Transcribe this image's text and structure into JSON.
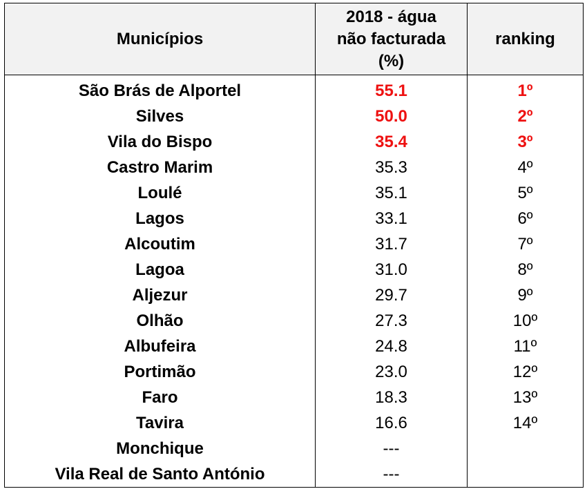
{
  "table": {
    "headers": {
      "municipality": "Municípios",
      "value_line1": "2018 - água",
      "value_line2": "não facturada",
      "value_line3": "(%)",
      "rank": "ranking"
    },
    "highlight_color": "#ee1111",
    "rows": [
      {
        "name": "São Brás de Alportel",
        "value": "55.1",
        "rank": "1º",
        "highlight": true
      },
      {
        "name": "Silves",
        "value": "50.0",
        "rank": "2º",
        "highlight": true
      },
      {
        "name": "Vila do Bispo",
        "value": "35.4",
        "rank": "3º",
        "highlight": true
      },
      {
        "name": "Castro Marim",
        "value": "35.3",
        "rank": "4º",
        "highlight": false
      },
      {
        "name": "Loulé",
        "value": "35.1",
        "rank": "5º",
        "highlight": false
      },
      {
        "name": "Lagos",
        "value": "33.1",
        "rank": "6º",
        "highlight": false
      },
      {
        "name": "Alcoutim",
        "value": "31.7",
        "rank": "7º",
        "highlight": false
      },
      {
        "name": "Lagoa",
        "value": "31.0",
        "rank": "8º",
        "highlight": false
      },
      {
        "name": "Aljezur",
        "value": "29.7",
        "rank": "9º",
        "highlight": false
      },
      {
        "name": "Olhão",
        "value": "27.3",
        "rank": "10º",
        "highlight": false
      },
      {
        "name": "Albufeira",
        "value": "24.8",
        "rank": "11º",
        "highlight": false
      },
      {
        "name": "Portimão",
        "value": "23.0",
        "rank": "12º",
        "highlight": false
      },
      {
        "name": "Faro",
        "value": "18.3",
        "rank": "13º",
        "highlight": false
      },
      {
        "name": "Tavira",
        "value": "16.6",
        "rank": "14º",
        "highlight": false
      },
      {
        "name": "Monchique",
        "value": "---",
        "rank": "",
        "highlight": false
      },
      {
        "name": "Vila Real de Santo António",
        "value": "---",
        "rank": "",
        "highlight": false
      }
    ]
  }
}
